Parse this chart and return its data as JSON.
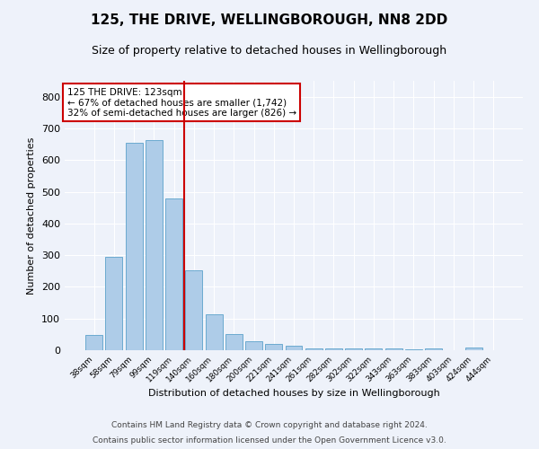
{
  "title": "125, THE DRIVE, WELLINGBOROUGH, NN8 2DD",
  "subtitle": "Size of property relative to detached houses in Wellingborough",
  "xlabel": "Distribution of detached houses by size in Wellingborough",
  "ylabel": "Number of detached properties",
  "categories": [
    "38sqm",
    "58sqm",
    "79sqm",
    "99sqm",
    "119sqm",
    "140sqm",
    "160sqm",
    "180sqm",
    "200sqm",
    "221sqm",
    "241sqm",
    "261sqm",
    "282sqm",
    "302sqm",
    "322sqm",
    "343sqm",
    "363sqm",
    "383sqm",
    "403sqm",
    "424sqm",
    "444sqm"
  ],
  "values": [
    47,
    295,
    655,
    663,
    478,
    251,
    113,
    51,
    29,
    19,
    13,
    7,
    6,
    6,
    6,
    6,
    2,
    6,
    1,
    8,
    1
  ],
  "bar_color": "#aecce8",
  "bar_edge_color": "#6baad0",
  "background_color": "#eef2fa",
  "grid_color": "#ffffff",
  "vline_x": 4.5,
  "vline_color": "#cc0000",
  "annotation_text": "125 THE DRIVE: 123sqm\n← 67% of detached houses are smaller (1,742)\n32% of semi-detached houses are larger (826) →",
  "annotation_box_color": "#ffffff",
  "annotation_box_edge_color": "#cc0000",
  "ylim": [
    0,
    850
  ],
  "yticks": [
    0,
    100,
    200,
    300,
    400,
    500,
    600,
    700,
    800
  ],
  "footer_line1": "Contains HM Land Registry data © Crown copyright and database right 2024.",
  "footer_line2": "Contains public sector information licensed under the Open Government Licence v3.0."
}
